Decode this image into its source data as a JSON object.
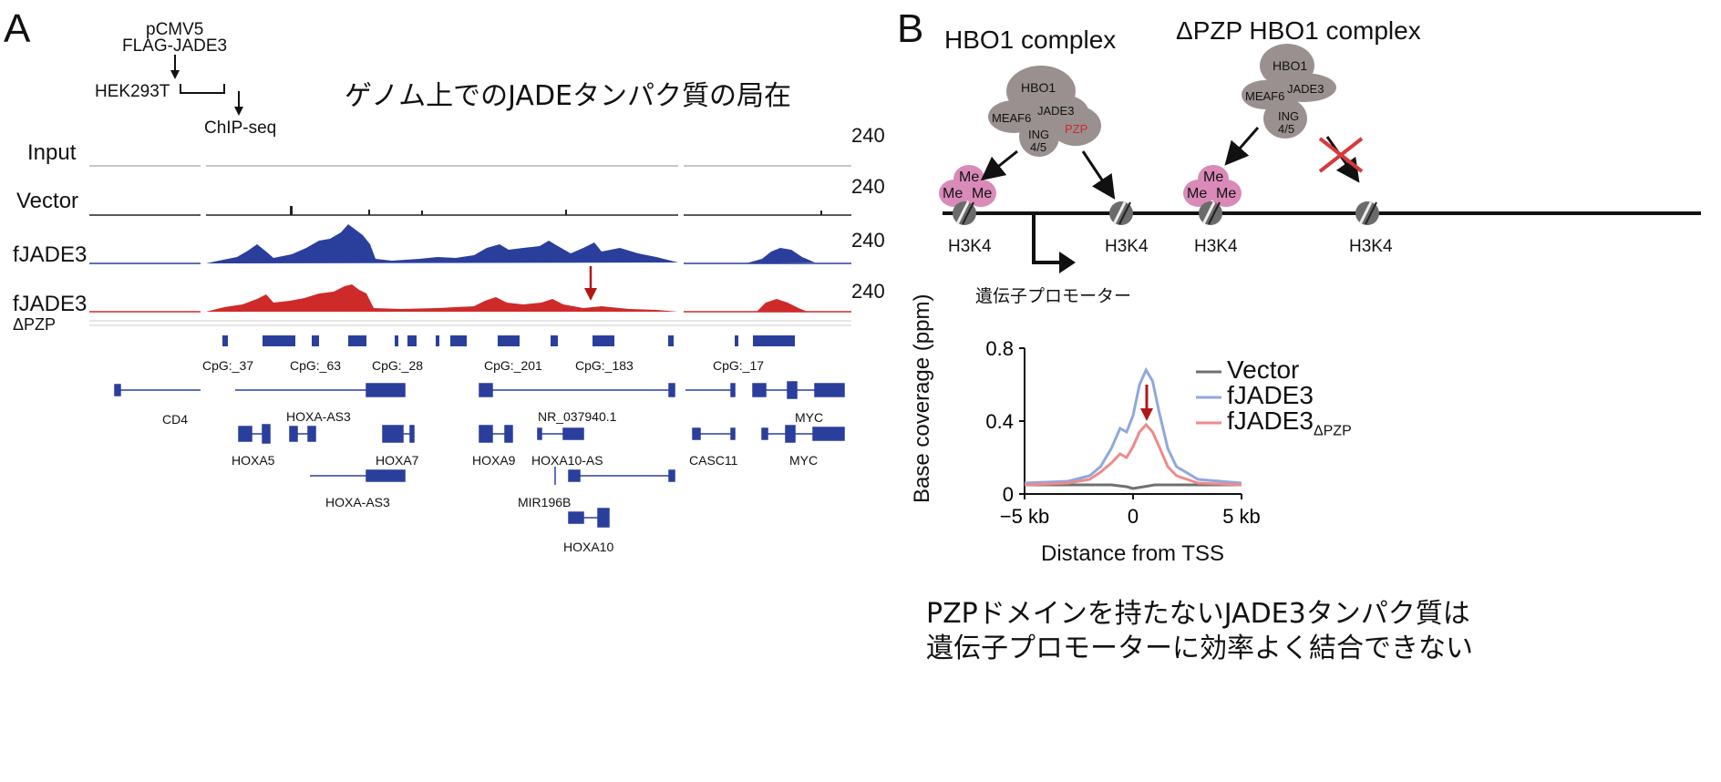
{
  "panel_a": {
    "letter": "A",
    "protocol": {
      "plasmid_line1": "pCMV5",
      "plasmid_line2": "FLAG-JADE3",
      "cell_line": "HEK293T",
      "assay": "ChIP-seq"
    },
    "title": "ゲノム上でのJADEタンパク質の局在",
    "tracks": [
      {
        "label": "Input",
        "scale": "240",
        "color": "#b4b4b4"
      },
      {
        "label": "Vector",
        "scale": "240",
        "color": "#222222"
      },
      {
        "label": "fJADE3",
        "scale": "240",
        "color": "#2a3f9c"
      },
      {
        "label": "fJADE3",
        "sub": "ΔPZP",
        "scale": "240",
        "color": "#cf2a2a"
      }
    ],
    "cpg_labels": [
      "CpG:_37",
      "CpG:_63",
      "CpG:_28",
      "CpG:_201",
      "CpG:_183",
      "CpG:_17"
    ],
    "genes": [
      "CD4",
      "HOXA-AS3",
      "NR_037940.1",
      "MYC",
      "HOXA5",
      "HOXA7",
      "HOXA9",
      "HOXA10-AS",
      "CASC11",
      "MYC",
      "HOXA-AS3",
      "MIR196B",
      "HOXA10"
    ]
  },
  "panel_b": {
    "letter": "B",
    "complex_wt": "HBO1 complex",
    "complex_dpzp": "ΔPZP HBO1 complex",
    "subunits_wt": [
      "HBO1",
      "MEAF6",
      "JADE3",
      "PZP",
      "ING",
      "4/5"
    ],
    "subunits_dpzp": [
      "HBO1",
      "MEAF6",
      "JADE3",
      "ING",
      "4/5"
    ],
    "me_label": "Me",
    "h3k4_label": "H3K4",
    "promoter_label": "遺伝子プロモーター",
    "caption_line1": "PZPドメインを持たないJADE3タンパク質は",
    "caption_line2": "遺伝子プロモーターに効率よく結合できない"
  },
  "colors": {
    "blue": "#2a3f9c",
    "red": "#cf2a2a",
    "gray_complex": "#9a9090",
    "pink_me": "#d98ab8",
    "dark_red_arrow": "#b01818"
  },
  "chart_data": {
    "type": "line",
    "xlabel": "Distance from TSS",
    "ylabel": "Base coverage (ppm)",
    "x_ticks": [
      "−5 kb",
      "0",
      "5 kb"
    ],
    "y_ticks": [
      "0",
      "0.4",
      "0.8"
    ],
    "xlim": [
      -5,
      5
    ],
    "ylim": [
      0,
      0.8
    ],
    "grid": false,
    "legend_position": "top-right",
    "series": [
      {
        "name": "Vector",
        "color": "#707070",
        "x": [
          -5,
          -2,
          -1,
          -0.3,
          0,
          0.5,
          1,
          2,
          5
        ],
        "y": [
          0.05,
          0.05,
          0.05,
          0.04,
          0.03,
          0.04,
          0.05,
          0.05,
          0.05
        ]
      },
      {
        "name": "fJADE3",
        "sub": "",
        "color": "#8fa8dc",
        "x": [
          -5,
          -3,
          -2,
          -1.5,
          -1,
          -0.6,
          -0.3,
          0,
          0.3,
          0.6,
          0.9,
          1.2,
          1.6,
          2,
          3,
          5
        ],
        "y": [
          0.06,
          0.07,
          0.1,
          0.15,
          0.25,
          0.36,
          0.34,
          0.43,
          0.6,
          0.68,
          0.62,
          0.45,
          0.25,
          0.15,
          0.08,
          0.06
        ]
      },
      {
        "name": "fJADE3",
        "sub": "ΔPZP",
        "color": "#f08a8a",
        "x": [
          -5,
          -3,
          -2,
          -1.5,
          -1,
          -0.6,
          -0.3,
          0,
          0.3,
          0.6,
          0.9,
          1.2,
          1.6,
          2,
          3,
          5
        ],
        "y": [
          0.05,
          0.06,
          0.08,
          0.12,
          0.17,
          0.22,
          0.2,
          0.26,
          0.34,
          0.38,
          0.34,
          0.26,
          0.15,
          0.1,
          0.06,
          0.05
        ]
      }
    ]
  }
}
